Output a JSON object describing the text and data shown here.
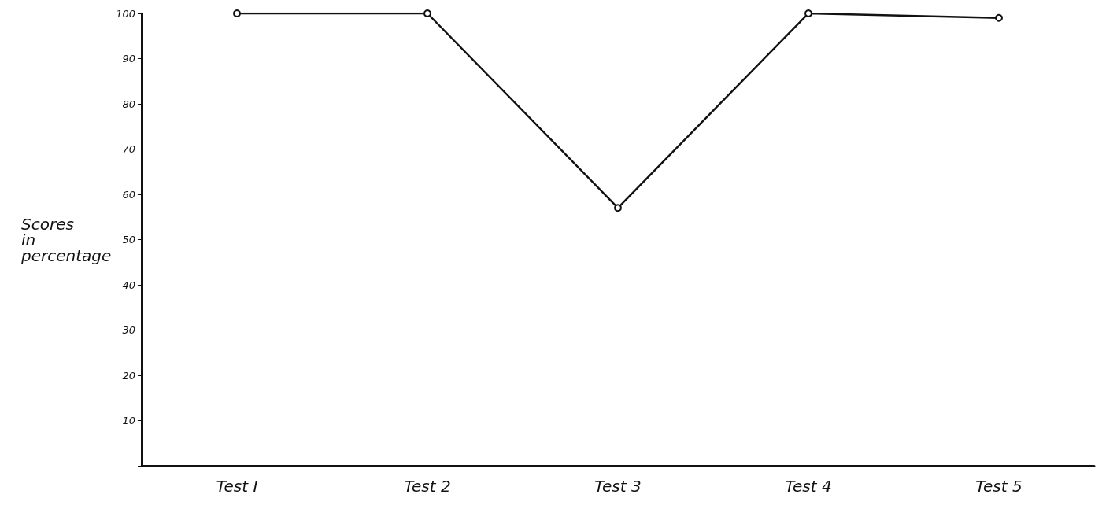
{
  "chart_data": {
    "type": "line",
    "ylabel": "Scores\nin\npercentage",
    "categories": [
      "Test I",
      "Test 2",
      "Test 3",
      "Test 4",
      "Test 5"
    ],
    "series": [
      {
        "color": "#111111",
        "values": [
          100,
          100,
          57,
          100,
          99
        ]
      }
    ],
    "ylim": [
      0,
      100
    ],
    "yticks": [
      {
        "value": 0,
        "label": null
      },
      10,
      20,
      30,
      40,
      50,
      60,
      70,
      80,
      90,
      100
    ],
    "grid": false,
    "marker": "circle",
    "line_style": "solid"
  }
}
